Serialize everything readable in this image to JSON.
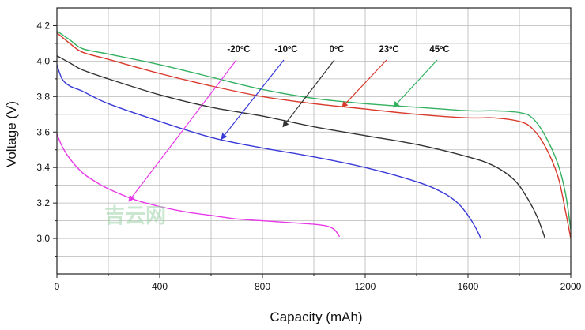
{
  "chart_data": {
    "type": "line",
    "title": "",
    "xlabel": "Capacity (mAh)",
    "ylabel": "Voltage (V)",
    "xlim": [
      0,
      2000
    ],
    "ylim": [
      2.8,
      4.3
    ],
    "xticks": [
      0,
      400,
      800,
      1200,
      1600,
      2000
    ],
    "yticks": [
      3.0,
      3.2,
      3.4,
      3.6,
      3.8,
      4.0,
      4.2
    ],
    "x_tick_labels": [
      "0",
      "400",
      "800",
      "1200",
      "1600",
      "2000"
    ],
    "y_tick_labels": [
      "3.0",
      "3.2",
      "3.4",
      "3.6",
      "3.8",
      "4.0",
      "4.2"
    ],
    "grid": true,
    "series": [
      {
        "name": "-20°C",
        "label": "-20ºC",
        "color": "#e838e8",
        "x": [
          0,
          20,
          50,
          100,
          150,
          200,
          300,
          400,
          500,
          600,
          700,
          800,
          900,
          1000,
          1050,
          1080,
          1100
        ],
        "y": [
          3.59,
          3.52,
          3.45,
          3.37,
          3.32,
          3.28,
          3.22,
          3.18,
          3.15,
          3.13,
          3.11,
          3.1,
          3.09,
          3.08,
          3.07,
          3.05,
          3.01
        ]
      },
      {
        "name": "-10°C",
        "label": "-10ºC",
        "color": "#3a3ad8",
        "x": [
          0,
          20,
          50,
          100,
          200,
          400,
          600,
          800,
          1000,
          1200,
          1400,
          1500,
          1560,
          1600,
          1630,
          1650
        ],
        "y": [
          3.98,
          3.9,
          3.86,
          3.83,
          3.76,
          3.66,
          3.57,
          3.51,
          3.46,
          3.4,
          3.32,
          3.26,
          3.2,
          3.13,
          3.06,
          3.0
        ]
      },
      {
        "name": "0°C",
        "label": "0ºC",
        "color": "#333333",
        "x": [
          0,
          50,
          100,
          200,
          400,
          600,
          800,
          1000,
          1200,
          1400,
          1600,
          1700,
          1780,
          1830,
          1870,
          1900
        ],
        "y": [
          4.03,
          3.99,
          3.95,
          3.9,
          3.81,
          3.74,
          3.69,
          3.63,
          3.58,
          3.53,
          3.46,
          3.41,
          3.33,
          3.23,
          3.12,
          3.0
        ]
      },
      {
        "name": "23°C",
        "label": "23ºC",
        "color": "#d83a2c",
        "x": [
          0,
          50,
          100,
          200,
          400,
          600,
          800,
          1000,
          1200,
          1400,
          1600,
          1700,
          1800,
          1850,
          1900,
          1950,
          1980,
          2000
        ],
        "y": [
          4.16,
          4.1,
          4.05,
          4.01,
          3.93,
          3.86,
          3.8,
          3.76,
          3.73,
          3.7,
          3.68,
          3.68,
          3.66,
          3.62,
          3.52,
          3.35,
          3.15,
          3.0
        ]
      },
      {
        "name": "45°C",
        "label": "45ºC",
        "color": "#33b060",
        "x": [
          0,
          50,
          100,
          200,
          400,
          600,
          800,
          1000,
          1200,
          1400,
          1600,
          1700,
          1800,
          1850,
          1900,
          1950,
          1980,
          2000
        ],
        "y": [
          4.17,
          4.12,
          4.07,
          4.04,
          3.98,
          3.91,
          3.84,
          3.79,
          3.76,
          3.74,
          3.72,
          3.72,
          3.71,
          3.68,
          3.58,
          3.42,
          3.25,
          3.05
        ]
      }
    ],
    "annotations": [
      {
        "series": "-20°C",
        "text": "-20ºC",
        "target": [
          280,
          3.21
        ]
      },
      {
        "series": "-10°C",
        "text": "-10ºC",
        "target": [
          640,
          3.56
        ]
      },
      {
        "series": "0°C",
        "text": "0ºC",
        "target": [
          880,
          3.63
        ]
      },
      {
        "series": "23°C",
        "text": "23ºC",
        "target": [
          1110,
          3.74
        ]
      },
      {
        "series": "45°C",
        "text": "45ºC",
        "target": [
          1310,
          3.74
        ]
      }
    ],
    "watermark": "吉云网"
  }
}
